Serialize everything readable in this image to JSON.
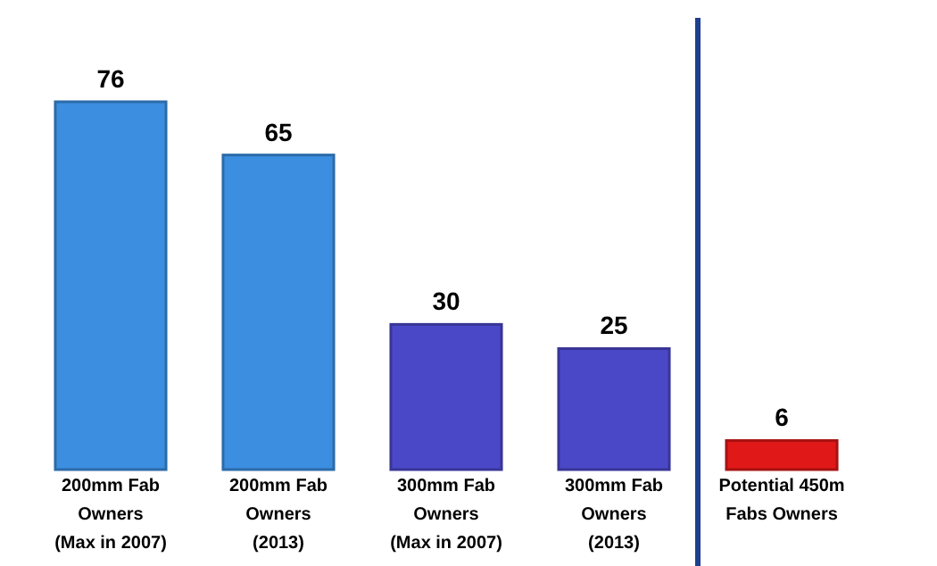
{
  "chart_data": {
    "type": "bar",
    "categories": [
      "200mm Fab\nOwners\n(Max in 2007)",
      "200mm Fab\nOwners\n(2013)",
      "300mm Fab\nOwners\n(Max in 2007)",
      "300mm Fab\nOwners\n(2013)",
      "Potential 450m\nFabs Owners"
    ],
    "values": [
      76,
      65,
      30,
      25,
      6
    ],
    "colors": [
      "#3b8ee0",
      "#3b8ee0",
      "#4b48c8",
      "#4b48c8",
      "#e01818"
    ],
    "data_labels": true
  }
}
